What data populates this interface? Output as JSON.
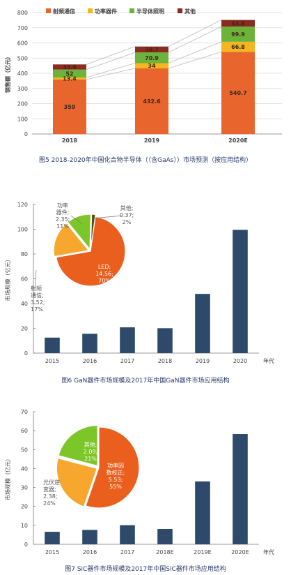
{
  "chart_data": [
    {
      "type": "bar",
      "stacked": true,
      "categories": [
        "2018",
        "2019",
        "2020E"
      ],
      "ylabel": "销售额（亿元）",
      "ylim": [
        0,
        800
      ],
      "yticks": [
        0,
        100,
        200,
        300,
        400,
        500,
        600,
        700,
        800
      ],
      "legend": "top",
      "colors": {
        "射频通信": "#e8662e",
        "功率器件": "#f5b51f",
        "半导体照明": "#6db23a",
        "其他": "#8b2c20"
      },
      "series": [
        {
          "name": "射频通信",
          "values": [
            359,
            432.6,
            540.7
          ]
        },
        {
          "name": "功率器件",
          "values": [
            13.4,
            34,
            66.8
          ]
        },
        {
          "name": "半导体照明",
          "values": [
            52,
            70.9,
            99.9
          ]
        },
        {
          "name": "其他",
          "values": [
            33.9,
            38.7,
            43.8
          ]
        }
      ],
      "caption": "图5  2018-2020年中国化合物半导体（（含GaAs））市场预测（按应用结构）"
    },
    {
      "type": "bar",
      "categories": [
        "2015",
        "2016",
        "2017",
        "2018",
        "2019",
        "2020"
      ],
      "xlabel": "年代",
      "ylabel": "市场规模（亿元）",
      "ylim": [
        0,
        120
      ],
      "yticks": [
        0,
        20,
        40,
        60,
        80,
        100,
        120
      ],
      "values": [
        12.5,
        15.6,
        20.8,
        20.1,
        47.8,
        99.5
      ],
      "bar_color": "#2e4a6b",
      "pie": {
        "colors": [
          "#ea5f1e",
          "#f7a72e",
          "#7cc629",
          "#5a4a1a"
        ],
        "slices": [
          {
            "label": "LED;",
            "value_text": "14.56;",
            "pct_text": "70%",
            "value": 14.56
          },
          {
            "label": "射频\n通信;",
            "value_text": "3.52;",
            "pct_text": "17%",
            "value": 3.52
          },
          {
            "label": "功率\n器件;",
            "value_text": "2.35;",
            "pct_text": "11%",
            "value": 2.35
          },
          {
            "label": "其他;",
            "value_text": "0.37;",
            "pct_text": "2%",
            "value": 0.37
          }
        ]
      },
      "caption": "图6  GaN器件市场规模及2017年中国GaN器件市场应用结构"
    },
    {
      "type": "bar",
      "categories": [
        "2015",
        "2016",
        "2017",
        "2018E",
        "2019E",
        "2020E"
      ],
      "xlabel": "年代",
      "ylabel": "市场规模（亿元）",
      "ylim": [
        0,
        70
      ],
      "yticks": [
        0,
        10,
        20,
        30,
        40,
        50,
        60,
        70
      ],
      "values": [
        6.6,
        7.6,
        10.1,
        8.1,
        33.2,
        58.2
      ],
      "bar_color": "#2e4a6b",
      "pie": {
        "colors": [
          "#ea5f1e",
          "#f7a72e",
          "#7cc629"
        ],
        "slices": [
          {
            "label": "功率因\n数校正;",
            "value_text": "5.53;",
            "pct_text": "55%",
            "value": 5.53
          },
          {
            "label": "光伏逆\n变器;",
            "value_text": "2.38;",
            "pct_text": "24%",
            "value": 2.38
          },
          {
            "label": "其他;",
            "value_text": "2.09;",
            "pct_text": "21%",
            "value": 2.09
          }
        ]
      },
      "caption": "图7  SiC器件市场规模及2017年中国SiC器件市场应用结构"
    }
  ]
}
